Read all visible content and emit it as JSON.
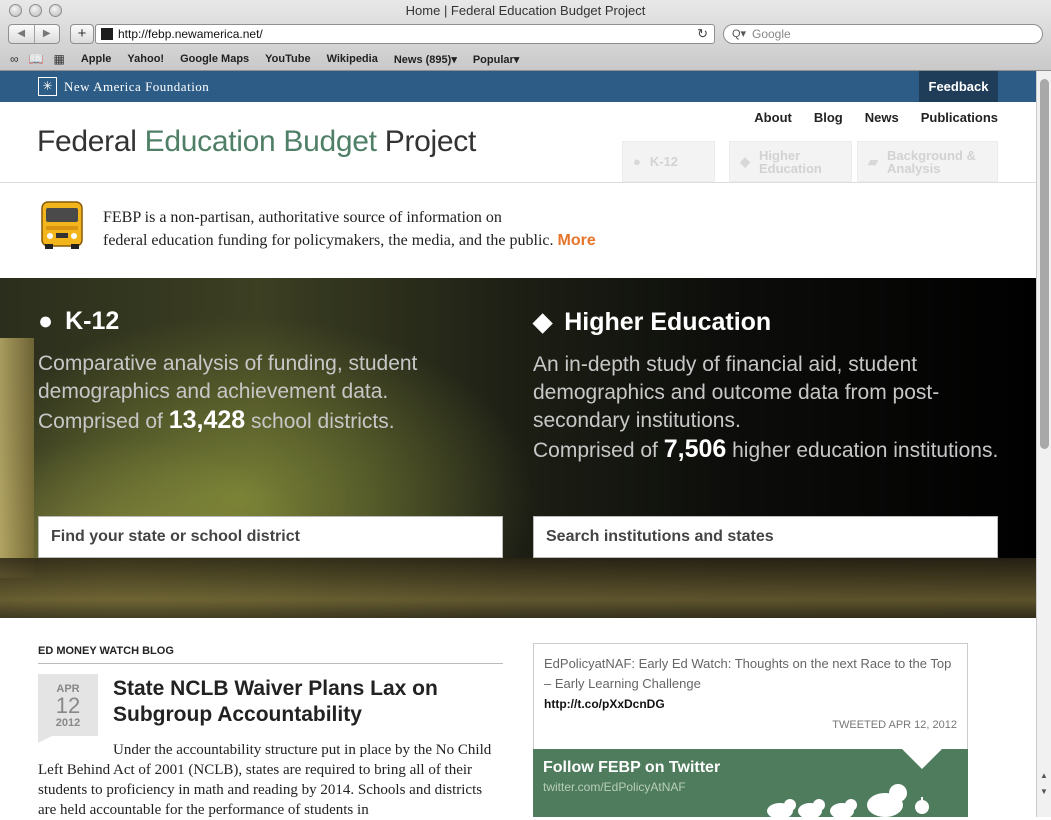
{
  "browser": {
    "window_title": "Home | Federal Education Budget Project",
    "url": "http://febp.newamerica.net/",
    "search_placeholder": "Google",
    "bookmarks": [
      "Apple",
      "Yahoo!",
      "Google Maps",
      "YouTube",
      "Wikipedia",
      "News (895)",
      "Popular"
    ]
  },
  "site": {
    "org_name": "New America Foundation",
    "feedback_label": "Feedback",
    "title_parts": [
      "Federal ",
      "Education Budget",
      " Project"
    ],
    "topnav": [
      "About",
      "Blog",
      "News",
      "Publications"
    ],
    "iconnav": [
      "K-12",
      "Higher Education",
      "Background & Analysis"
    ],
    "intro_line1": "FEBP is a non-partisan, authoritative source of information on",
    "intro_line2": "federal education funding for policymakers, the media, and the public.",
    "intro_more": "More",
    "colors": {
      "nav_bar": "#2d5c86",
      "title_green": "#4f7f66",
      "title_blue": "#2f5d87",
      "accent_orange": "#e6742b",
      "twitter_green": "#4e7c5d"
    }
  },
  "hero": {
    "k12": {
      "heading": "K-12",
      "desc": "Comparative analysis of funding, student demographics and achievement data.",
      "count_prefix": "Comprised of ",
      "count": "13,428",
      "count_suffix": " school districts.",
      "search_label": "Find your state or school district"
    },
    "higher": {
      "heading": "Higher Education",
      "desc": "An in-depth study of financial aid, student demographics and outcome data from post-secondary institutions.",
      "count_prefix": "Comprised of ",
      "count": "7,506",
      "count_suffix": " higher education institutions.",
      "search_label": "Search institutions and states"
    }
  },
  "blog": {
    "heading": "ED MONEY WATCH BLOG",
    "date": {
      "month": "APR",
      "day": "12",
      "year": "2012"
    },
    "title": "State NCLB Waiver Plans Lax on Subgroup Accountability",
    "body": "Under the accountability structure put in place by the No Child Left Behind Act of 2001 (NCLB), states are required to bring all of their students to proficiency in math and reading by 2014. Schools and districts are held accountable for the performance of students in"
  },
  "twitter": {
    "tweet_text": "EdPolicyatNAF: Early Ed Watch: Thoughts on the next Race to the Top – Early Learning Challenge",
    "tweet_link": "http://t.co/pXxDcnDG",
    "tweet_time": "TWEETED APR 12, 2012",
    "follow_heading": "Follow FEBP on Twitter",
    "follow_url": "twitter.com/EdPolicyAtNAF"
  }
}
